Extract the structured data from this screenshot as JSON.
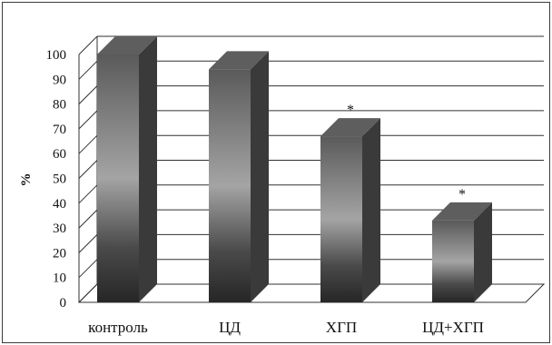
{
  "chart_data": {
    "type": "bar",
    "title": "",
    "xlabel": "",
    "ylabel": "%",
    "ylim": [
      0,
      100
    ],
    "yticks": [
      0,
      10,
      20,
      30,
      40,
      50,
      60,
      70,
      80,
      90,
      100
    ],
    "grid": true,
    "legend": "none",
    "categories": [
      "контроль",
      "ЦД",
      "ХГП",
      "ЦД+ХГП"
    ],
    "values": [
      100,
      94,
      67,
      33
    ],
    "annotations": [
      "",
      "",
      "*",
      "*"
    ],
    "colors": {
      "bar_light": "#a4a4a4",
      "bar_dark": "#2a2a2a",
      "bar_side": "#3a3a3a",
      "bar_top": "#5e5e5e",
      "grid": "#303030"
    }
  }
}
